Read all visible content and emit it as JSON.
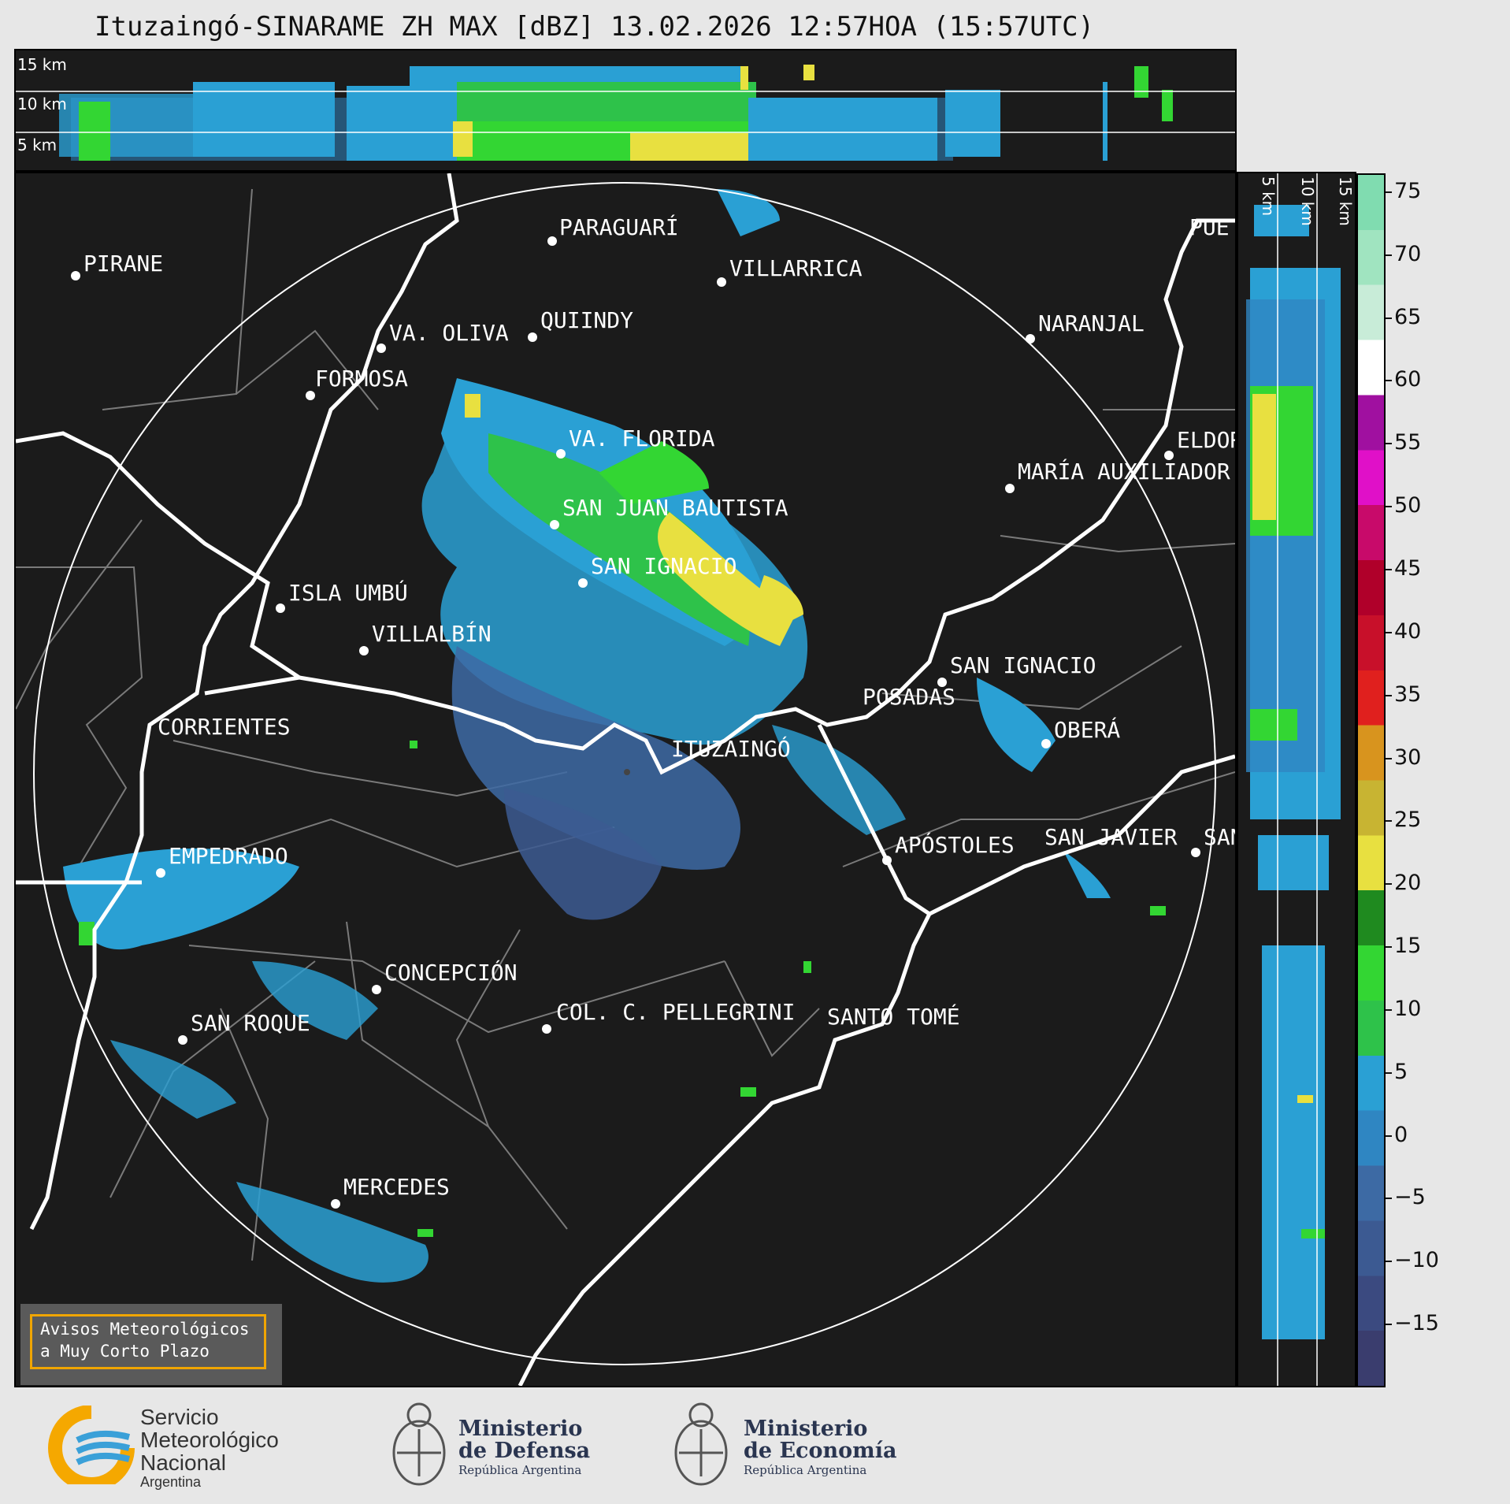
{
  "title": "Ituzaingó-SINARAME ZH MAX [dBZ] 13.02.2026 12:57HOA (15:57UTC)",
  "height_labels": {
    "h15": "15 km",
    "h10": "10 km",
    "h5": "5 km"
  },
  "colorbar": {
    "ticks": [
      "75",
      "70",
      "65",
      "60",
      "55",
      "50",
      "45",
      "40",
      "35",
      "30",
      "25",
      "20",
      "15",
      "10",
      "5",
      "0",
      "−5",
      "−10",
      "−15"
    ],
    "range": [
      -20,
      76.5
    ],
    "colors": [
      "#3a3d6e",
      "#3b4a80",
      "#3c5a92",
      "#3d6aa4",
      "#2f86c2",
      "#2aa0d4",
      "#2ec24a",
      "#33d633",
      "#1f8a1f",
      "#e8e040",
      "#c8b432",
      "#d8941e",
      "#e0201e",
      "#c8102a",
      "#b0002a",
      "#c80a6a",
      "#e010c8",
      "#a010a0",
      "#ffffff",
      "#c8ecd8",
      "#a0e4c0",
      "#80dcb0"
    ]
  },
  "cities": [
    {
      "name": "PIRANE"
    },
    {
      "name": "PARAGUARÍ"
    },
    {
      "name": "VILLARRICA"
    },
    {
      "name": "PUE"
    },
    {
      "name": "QUIINDY"
    },
    {
      "name": "VA. OLIVA"
    },
    {
      "name": "NARANJAL"
    },
    {
      "name": "FORMOSA"
    },
    {
      "name": "ELDOR"
    },
    {
      "name": "VA. FLORIDA"
    },
    {
      "name": "MARÍA AUXILIADOR"
    },
    {
      "name": "SAN JUAN BAUTISTA"
    },
    {
      "name": "SAN IGNACIO"
    },
    {
      "name": "ISLA UMBÚ"
    },
    {
      "name": "VILLALBÍN"
    },
    {
      "name": "SAN IGNACIO"
    },
    {
      "name": "POSADAS"
    },
    {
      "name": "CORRIENTES"
    },
    {
      "name": "ITUZAINGÓ"
    },
    {
      "name": "OBERÁ"
    },
    {
      "name": "APÓSTOLES"
    },
    {
      "name": "SAN JAVIER"
    },
    {
      "name": "SAN"
    },
    {
      "name": "EMPEDRADO"
    },
    {
      "name": "CONCEPCIÓN"
    },
    {
      "name": "COL. C. PELLEGRINI"
    },
    {
      "name": "SANTO TOMÉ"
    },
    {
      "name": "SAN ROQUE"
    },
    {
      "name": "MERCEDES"
    }
  ],
  "avisos": {
    "line1": "Avisos Meteorológicos",
    "line2": "a Muy Corto Plazo"
  },
  "logos": {
    "smn": {
      "line1": "Servicio",
      "line2": "Meteorológico",
      "line3": "Nacional",
      "line4": "Argentina"
    },
    "defensa": {
      "line1": "Ministerio",
      "line2": "de Defensa",
      "line3": "República Argentina"
    },
    "economia": {
      "line1": "Ministerio",
      "line2": "de Economía",
      "line3": "República Argentina"
    }
  }
}
